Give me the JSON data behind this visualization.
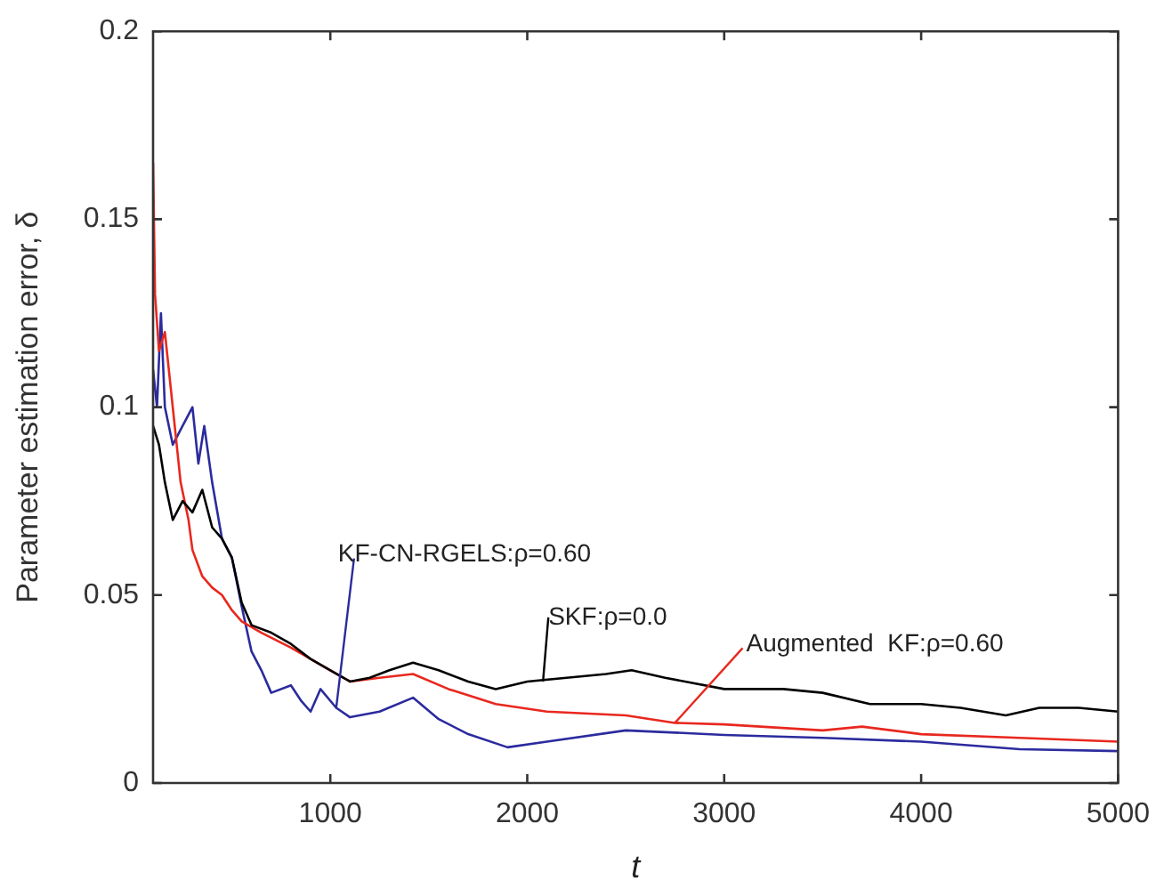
{
  "chart_data": {
    "type": "line",
    "xlabel": "t",
    "ylabel": "Parameter estimation error, δ",
    "xlim": [
      100,
      5000
    ],
    "xticks": [
      1000,
      2000,
      3000,
      4000,
      5000
    ],
    "ylim": [
      0,
      0.2
    ],
    "yticks": [
      0,
      0.05,
      0.1,
      0.15,
      0.2
    ],
    "grid": false,
    "legend": false,
    "marker": "none",
    "line_style": "solid",
    "series": [
      {
        "color": "#000000",
        "x": [
          100,
          130,
          160,
          200,
          250,
          300,
          350,
          400,
          450,
          500,
          550,
          600,
          700,
          800,
          900,
          1000,
          1100,
          1200,
          1300,
          1420,
          1550,
          1700,
          1840,
          2000,
          2200,
          2400,
          2530,
          2700,
          3000,
          3300,
          3500,
          3740,
          4000,
          4200,
          4430,
          4600,
          4800,
          5000
        ],
        "values": [
          0.095,
          0.09,
          0.08,
          0.07,
          0.075,
          0.072,
          0.078,
          0.068,
          0.065,
          0.06,
          0.048,
          0.042,
          0.04,
          0.037,
          0.033,
          0.03,
          0.027,
          0.028,
          0.03,
          0.032,
          0.03,
          0.027,
          0.025,
          0.027,
          0.028,
          0.029,
          0.03,
          0.028,
          0.025,
          0.025,
          0.024,
          0.021,
          0.021,
          0.02,
          0.018,
          0.02,
          0.02,
          0.019
        ]
      },
      {
        "color": "#e8281e",
        "x": [
          100,
          110,
          130,
          160,
          200,
          240,
          280,
          300,
          350,
          400,
          450,
          500,
          550,
          650,
          800,
          900,
          1000,
          1100,
          1250,
          1420,
          1600,
          1840,
          2100,
          2500,
          2750,
          3000,
          3500,
          3700,
          4000,
          4500,
          5000
        ],
        "values": [
          0.165,
          0.13,
          0.115,
          0.12,
          0.1,
          0.08,
          0.07,
          0.062,
          0.055,
          0.052,
          0.05,
          0.046,
          0.043,
          0.04,
          0.036,
          0.033,
          0.03,
          0.027,
          0.028,
          0.029,
          0.025,
          0.021,
          0.019,
          0.018,
          0.016,
          0.0156,
          0.014,
          0.015,
          0.013,
          0.012,
          0.011
        ]
      },
      {
        "color": "#2b2b9e",
        "x": [
          100,
          120,
          140,
          160,
          200,
          250,
          300,
          330,
          360,
          400,
          450,
          500,
          550,
          600,
          650,
          700,
          800,
          850,
          900,
          950,
          1030,
          1100,
          1250,
          1420,
          1550,
          1700,
          1900,
          2100,
          2500,
          3000,
          3500,
          4000,
          4500,
          5000
        ],
        "values": [
          0.11,
          0.1,
          0.125,
          0.1,
          0.09,
          0.095,
          0.1,
          0.085,
          0.095,
          0.08,
          0.065,
          0.06,
          0.047,
          0.035,
          0.03,
          0.024,
          0.026,
          0.022,
          0.019,
          0.025,
          0.02,
          0.0175,
          0.019,
          0.0227,
          0.017,
          0.013,
          0.0095,
          0.011,
          0.014,
          0.0128,
          0.012,
          0.011,
          0.009,
          0.0085
        ]
      }
    ],
    "annotations": [
      {
        "text": "KF-CN-RGELS:ρ=0.60",
        "x": 1030,
        "y": 0.02
      },
      {
        "text": "SKF:ρ=0.0",
        "x": 2080,
        "y": 0.027
      },
      {
        "text": "Augmented  KF:ρ=0.60",
        "x": 2750,
        "y": 0.016
      }
    ]
  }
}
